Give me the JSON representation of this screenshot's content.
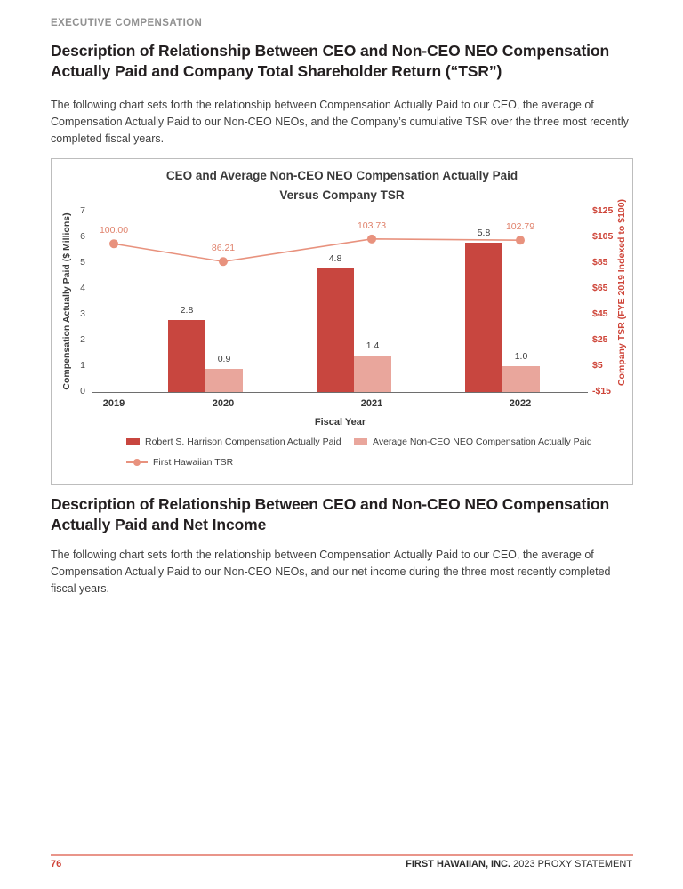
{
  "page": {
    "eyebrow": "EXECUTIVE COMPENSATION",
    "sections": [
      {
        "title": "Description of Relationship Between CEO and Non-CEO NEO Compensation Actually Paid and Company Total Shareholder Return (“TSR”)",
        "body": "The following chart sets forth the relationship between Compensation Actually Paid to our CEO, the average of Compensation Actually Paid to our Non-CEO NEOs, and the Company’s cumulative TSR over the three most recently completed fiscal years."
      },
      {
        "title": "Description of Relationship Between CEO and Non-CEO NEO Compensation Actually Paid and Net Income",
        "body": "The following chart sets forth the relationship between Compensation Actually Paid to our CEO, the average of Compensation Actually Paid to our Non-CEO NEOs, and our net income during the three most recently completed fiscal years."
      }
    ],
    "footer": {
      "page_number": "76",
      "company": "FIRST HAWAIIAN, INC.",
      "document": "2023 PROXY STATEMENT"
    }
  },
  "chart_data": {
    "type": "bar",
    "subtype": "clustered-bars-with-line",
    "title": "CEO and Average Non-CEO NEO Compensation Actually Paid Versus Company TSR",
    "title_lines": [
      "CEO and Average Non-CEO NEO Compensation Actually Paid",
      "Versus Company TSR"
    ],
    "categories": [
      "2019",
      "2020",
      "2021",
      "2022"
    ],
    "series": [
      {
        "name": "Robert S. Harrison Compensation Actually Paid",
        "type": "bar",
        "axis": "left",
        "color": "#c8463f",
        "values": [
          null,
          2.8,
          4.8,
          5.8
        ]
      },
      {
        "name": "Average Non-CEO NEO Compensation Actually Paid",
        "type": "bar",
        "axis": "left",
        "color": "#e9a69c",
        "values": [
          null,
          0.9,
          1.4,
          1.0
        ]
      },
      {
        "name": "First Hawaiian TSR",
        "type": "line",
        "axis": "right",
        "color": "#e8927e",
        "values": [
          100.0,
          86.21,
          103.73,
          102.79
        ],
        "point_labels": [
          "100.00",
          "86.21",
          "103.73",
          "102.79"
        ]
      }
    ],
    "xlabel": "Fiscal Year",
    "ylabel_left": "Compensation Actually Paid ($ Millions)",
    "ylabel_right": "Company TSR (FYE 2019 Indexed to $100)",
    "yticks_left": [
      "7",
      "6",
      "5",
      "4",
      "3",
      "2",
      "1",
      "0"
    ],
    "yticks_right": [
      "$125",
      "$105",
      "$85",
      "$65",
      "$45",
      "$25",
      "$5",
      "-$15"
    ],
    "ylim_left": [
      0,
      7
    ],
    "ylim_right": [
      -15,
      125
    ],
    "legend_position": "bottom",
    "grid": false
  }
}
